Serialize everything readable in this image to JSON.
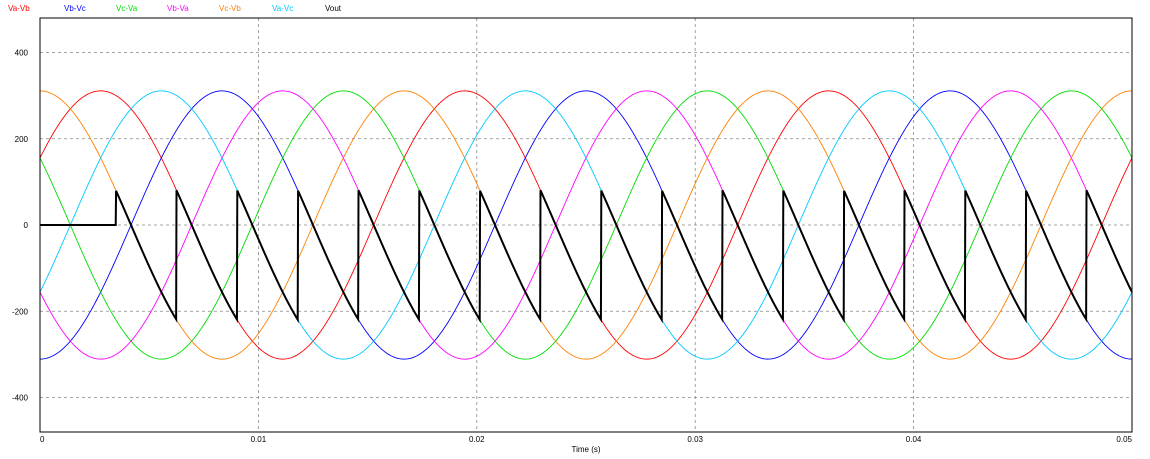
{
  "chart_data": {
    "type": "line",
    "xlabel": "Time (s)",
    "ylabel": "",
    "xlim": [
      0,
      0.05
    ],
    "ylim": [
      -480,
      480
    ],
    "xticks": [
      0,
      0.01,
      0.02,
      0.03,
      0.04,
      0.05
    ],
    "xtick_labels": [
      "0",
      "0.01",
      "0.02",
      "0.03",
      "0.04",
      "0.05"
    ],
    "yticks": [
      400,
      200,
      0,
      -200,
      -400
    ],
    "ytick_labels": [
      "400",
      "200",
      "0",
      "-200",
      "-400"
    ],
    "grid": true,
    "legend_position": "top-left",
    "amplitude": 311,
    "frequency_hz": 60,
    "series": [
      {
        "name": "Va-Vb",
        "color": "#ff0000",
        "phase_deg": 30
      },
      {
        "name": "Vb-Vc",
        "color": "#0000ff",
        "phase_deg": -90
      },
      {
        "name": "Vc-Va",
        "color": "#00dd00",
        "phase_deg": 150
      },
      {
        "name": "Vb-Va",
        "color": "#ff00ff",
        "phase_deg": -150
      },
      {
        "name": "Vc-Vb",
        "color": "#ff8000",
        "phase_deg": 90
      },
      {
        "name": "Va-Vc",
        "color": "#00c8ff",
        "phase_deg": -30
      },
      {
        "name": "Vout",
        "color": "#000000",
        "firing_start_s": 0.00347,
        "firing_delay_deg": 90,
        "initial_value": 0
      }
    ]
  }
}
